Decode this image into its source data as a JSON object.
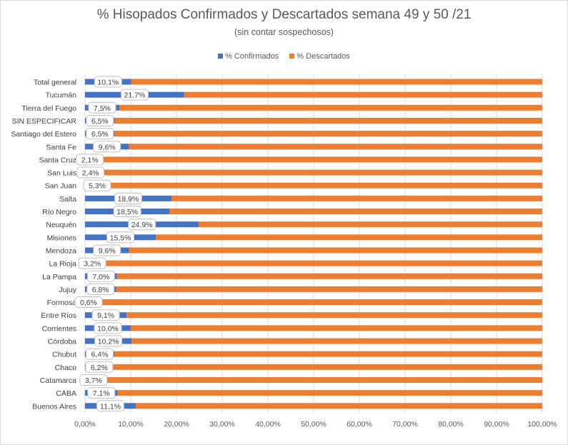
{
  "chart_data": {
    "type": "bar",
    "orientation": "horizontal",
    "stacked": true,
    "title": "% Hisopados Confirmados y Descartados semana 49 y 50 /21",
    "subtitle": "(sin contar sospechosos)",
    "categories": [
      "Total general",
      "Tucumán",
      "Tierra del Fuego",
      "SIN ESPECIFICAR",
      "Santiago del Estero",
      "Santa Fe",
      "Santa Cruz",
      "San Luis",
      "San Juan",
      "Salta",
      "Río Negro",
      "Neuquén",
      "Misiones",
      "Mendoza",
      "La Rioja",
      "La Pampa",
      "Jujuy",
      "Formosa",
      "Entre Ríos",
      "Corrientes",
      "Córdoba",
      "Chubut",
      "Chaco",
      "Catamarca",
      "CABA",
      "Buenos Aires"
    ],
    "series": [
      {
        "name": "% Confirmados",
        "color": "#4472c4",
        "values": [
          10.1,
          21.7,
          7.5,
          6.5,
          6.5,
          9.6,
          2.1,
          2.4,
          5.3,
          18.9,
          18.5,
          24.9,
          15.5,
          9.6,
          3.2,
          7.0,
          6.8,
          0.6,
          9.1,
          10.0,
          10.2,
          6.4,
          6.2,
          3.7,
          7.1,
          11.1
        ],
        "labels": [
          "10,1%",
          "21,7%",
          "7,5%",
          "6,5%",
          "6,5%",
          "9,6%",
          "2,1%",
          "2,4%",
          "5,3%",
          "18,9%",
          "18,5%",
          "24,9%",
          "15,5%",
          "9,6%",
          "3,2%",
          "7,0%",
          "6,8%",
          "0,6%",
          "9,1%",
          "10,0%",
          "10,2%",
          "6,4%",
          "6,2%",
          "3,7%",
          "7,1%",
          "11,1%"
        ]
      },
      {
        "name": "% Descartados",
        "color": "#ed7d31",
        "values": [
          89.9,
          78.3,
          92.5,
          93.5,
          93.5,
          90.4,
          97.9,
          97.6,
          94.7,
          81.1,
          81.5,
          75.1,
          84.5,
          90.4,
          96.8,
          93.0,
          93.2,
          99.4,
          90.9,
          90.0,
          89.8,
          93.6,
          93.8,
          96.3,
          92.9,
          88.9
        ]
      }
    ],
    "xlim": [
      0,
      100
    ],
    "x_ticks": [
      "0,00%",
      "10,00%",
      "20,00%",
      "30,00%",
      "40,00%",
      "50,00%",
      "60,00%",
      "70,00%",
      "80,00%",
      "90,00%",
      "100,00%"
    ],
    "grid": true,
    "legend_position": "top"
  }
}
